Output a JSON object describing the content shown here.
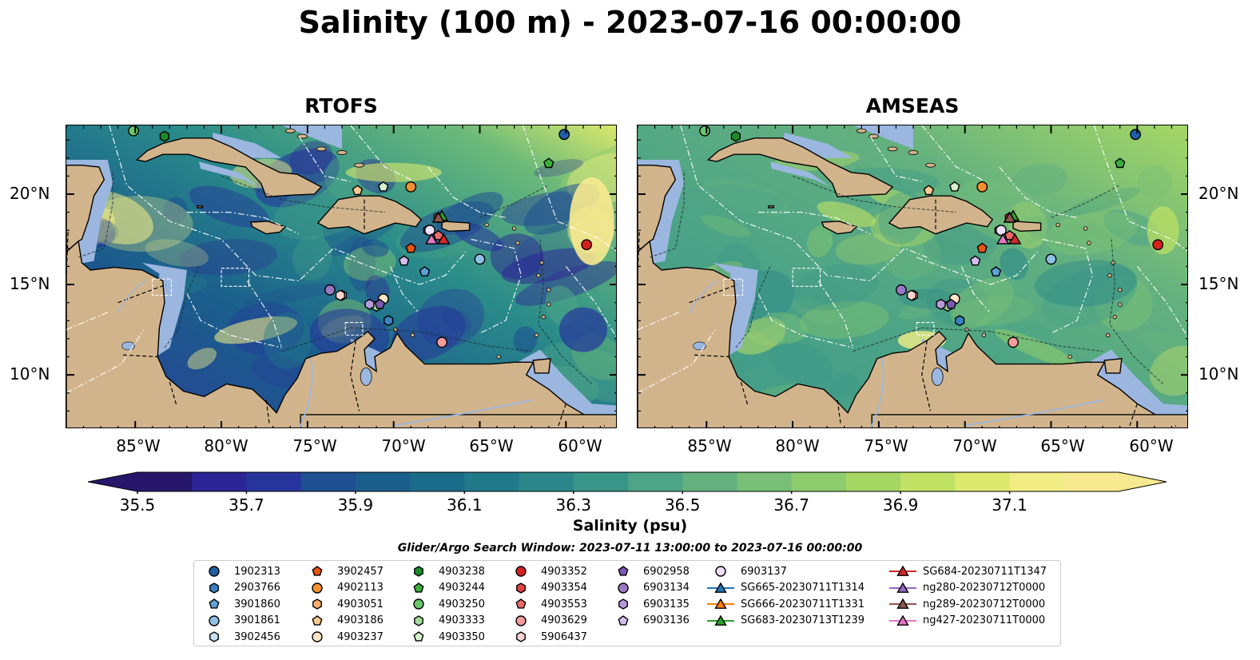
{
  "title": "Salinity (100 m) - 2023-07-16 00:00:00",
  "panels": [
    {
      "title": "RTOFS",
      "model": "rtofs"
    },
    {
      "title": "AMSEAS",
      "model": "amseas"
    }
  ],
  "axes": {
    "lat_ticks": [
      "20°N",
      "15°N",
      "10°N"
    ],
    "lon_ticks": [
      "85°W",
      "80°W",
      "75°W",
      "70°W",
      "65°W",
      "60°W"
    ]
  },
  "colorbar": {
    "label": "Salinity (psu)",
    "ticks": [
      "35.5",
      "35.7",
      "35.9",
      "36.1",
      "36.3",
      "36.5",
      "36.7",
      "36.9",
      "37.1"
    ],
    "colors": [
      "#27176b",
      "#2c2596",
      "#26349c",
      "#1d4f91",
      "#1a5f8c",
      "#1b6c8a",
      "#22798a",
      "#2b878a",
      "#3a9589",
      "#4da486",
      "#64b17f",
      "#79bf77",
      "#8dcc6d",
      "#a6d765",
      "#c1e164",
      "#dce96c",
      "#f1ec84",
      "#f7e98f"
    ]
  },
  "search_window": "Glider/Argo Search Window: 2023-07-11 13:00:00 to 2023-07-16 00:00:00",
  "legend": [
    {
      "label": "1902313",
      "marker": "circle",
      "color": "#1f5fa6"
    },
    {
      "label": "2903766",
      "marker": "hexagon",
      "color": "#3b82c4"
    },
    {
      "label": "3901860",
      "marker": "pentagon",
      "color": "#5ea2d8"
    },
    {
      "label": "3901861",
      "marker": "circle",
      "color": "#8fc1e6"
    },
    {
      "label": "3902456",
      "marker": "hexagon",
      "color": "#c6e2f5"
    },
    {
      "label": "3902457",
      "marker": "pentagon",
      "color": "#e6550d"
    },
    {
      "label": "4902113",
      "marker": "circle",
      "color": "#f5902e"
    },
    {
      "label": "4903051",
      "marker": "hexagon",
      "color": "#fdae6b"
    },
    {
      "label": "4903186",
      "marker": "pentagon",
      "color": "#fdc98f"
    },
    {
      "label": "4903237",
      "marker": "circle",
      "color": "#fee6c6"
    },
    {
      "label": "4903238",
      "marker": "hexagon",
      "color": "#1a8a2a"
    },
    {
      "label": "4903244",
      "marker": "pentagon",
      "color": "#3cae3c"
    },
    {
      "label": "4903250",
      "marker": "circle",
      "color": "#6ac76a"
    },
    {
      "label": "4903333",
      "marker": "hexagon",
      "color": "#a1dc9b"
    },
    {
      "label": "4903350",
      "marker": "pentagon",
      "color": "#d6f2cc"
    },
    {
      "label": "4903352",
      "marker": "circle",
      "color": "#d62020"
    },
    {
      "label": "4903354",
      "marker": "hexagon",
      "color": "#e04343"
    },
    {
      "label": "4903553",
      "marker": "pentagon",
      "color": "#ee6a6a"
    },
    {
      "label": "4903629",
      "marker": "circle",
      "color": "#f59c9c"
    },
    {
      "label": "5906437",
      "marker": "hexagon",
      "color": "#fbd2d2"
    },
    {
      "label": "6902958",
      "marker": "pentagon",
      "color": "#7b58b0"
    },
    {
      "label": "6903134",
      "marker": "circle",
      "color": "#9a78c8"
    },
    {
      "label": "6903135",
      "marker": "hexagon",
      "color": "#b79ad9"
    },
    {
      "label": "6903136",
      "marker": "pentagon",
      "color": "#d3bdec"
    },
    {
      "label": "6903137",
      "marker": "circle",
      "color": "#ecdffa"
    },
    {
      "label": "SG665-20230711T1314",
      "marker": "triangle-line",
      "color": "#1f77b4"
    },
    {
      "label": "SG666-20230711T1331",
      "marker": "triangle-line",
      "color": "#ff7f0e"
    },
    {
      "label": "SG683-20230713T1239",
      "marker": "triangle-line",
      "color": "#2ca02c"
    },
    {
      "label": "SG684-20230711T1347",
      "marker": "triangle-line",
      "color": "#d62728"
    },
    {
      "label": "ng280-20230712T0000",
      "marker": "triangle-line",
      "color": "#9467bd"
    },
    {
      "label": "ng289-20230712T0000",
      "marker": "triangle-line",
      "color": "#8c564b"
    },
    {
      "label": "ng427-20230711T0000",
      "marker": "triangle-line",
      "color": "#e377c2"
    }
  ],
  "platforms": [
    {
      "id": "1902313",
      "lon": -60.1,
      "lat": 23.3
    },
    {
      "id": "2903766",
      "lon": -70.3,
      "lat": 13.0
    },
    {
      "id": "3901860",
      "lon": -68.2,
      "lat": 15.7
    },
    {
      "id": "3901861",
      "lon": -65.0,
      "lat": 16.4
    },
    {
      "id": "3902456",
      "lon": -68.0,
      "lat": 18.0
    },
    {
      "id": "3902457",
      "lon": -69.0,
      "lat": 17.0
    },
    {
      "id": "4902113",
      "lon": -69.0,
      "lat": 20.4
    },
    {
      "id": "4903051",
      "lon": -73.0,
      "lat": 14.4
    },
    {
      "id": "4903186",
      "lon": -72.1,
      "lat": 20.2
    },
    {
      "id": "4903237",
      "lon": -70.6,
      "lat": 14.2
    },
    {
      "id": "4903238",
      "lon": -83.3,
      "lat": 23.2
    },
    {
      "id": "4903244",
      "lon": -61.0,
      "lat": 21.7
    },
    {
      "id": "4903250",
      "lon": -85.1,
      "lat": 23.5
    },
    {
      "id": "4903333",
      "lon": -71.0,
      "lat": 13.8
    },
    {
      "id": "4903350",
      "lon": -70.6,
      "lat": 20.4
    },
    {
      "id": "4903352",
      "lon": -58.8,
      "lat": 17.2
    },
    {
      "id": "4903354",
      "lon": -67.4,
      "lat": 18.7
    },
    {
      "id": "4903553",
      "lon": -67.4,
      "lat": 17.7
    },
    {
      "id": "4903629",
      "lon": -67.2,
      "lat": 11.8
    },
    {
      "id": "5906437",
      "lon": -73.1,
      "lat": 14.4
    },
    {
      "id": "6902958",
      "lon": -70.8,
      "lat": 13.9
    },
    {
      "id": "6903134",
      "lon": -73.7,
      "lat": 14.7
    },
    {
      "id": "6903135",
      "lon": -71.4,
      "lat": 13.9
    },
    {
      "id": "6903136",
      "lon": -69.4,
      "lat": 16.3
    },
    {
      "id": "6903137",
      "lon": -67.9,
      "lat": 18.0
    }
  ],
  "gliders": [
    {
      "id": "SG684-20230711T1347",
      "lon": -67.1,
      "lat": 17.5
    },
    {
      "id": "SG683-20230713T1239",
      "lon": -67.2,
      "lat": 18.8
    },
    {
      "id": "ng289-20230712T0000",
      "lon": -67.4,
      "lat": 18.7
    },
    {
      "id": "ng427-20230711T0000",
      "lon": -67.8,
      "lat": 17.5
    }
  ]
}
